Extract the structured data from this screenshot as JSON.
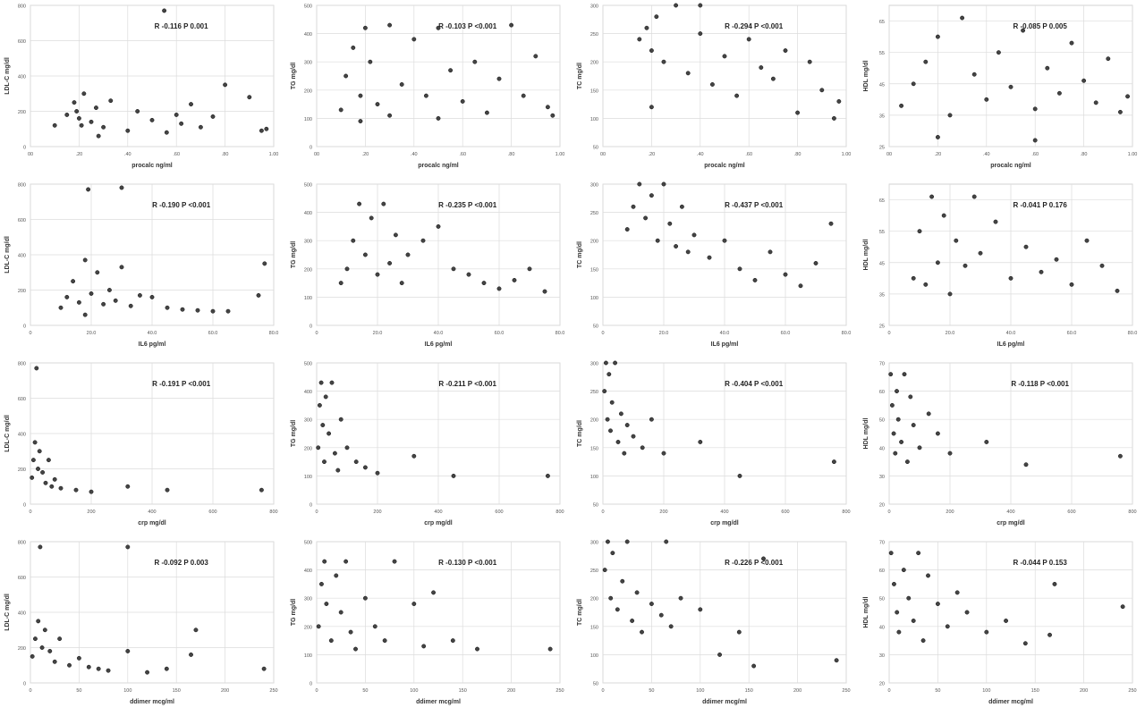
{
  "chart_data": [
    {
      "type": "scatter",
      "xlabel": "procalc ng/ml",
      "ylabel": "LDL-C mg/dl",
      "annotation": "R -0.116 P   0.001",
      "xlim": [
        0,
        1
      ],
      "ylim": [
        0,
        800
      ],
      "xticks": [
        0,
        0.2,
        0.4,
        0.6,
        0.8,
        1
      ],
      "xtick_labels": [
        "00",
        ".20",
        ".40",
        ".60",
        ".80",
        "1.00"
      ],
      "yticks": [
        0,
        200,
        400,
        600,
        800
      ],
      "ytick_labels": [
        "0",
        "200",
        "400",
        "600",
        "800"
      ],
      "x": [
        0.1,
        0.15,
        0.18,
        0.2,
        0.22,
        0.25,
        0.27,
        0.3,
        0.33,
        0.4,
        0.44,
        0.5,
        0.55,
        0.6,
        0.62,
        0.66,
        0.7,
        0.75,
        0.8,
        0.9,
        0.95,
        0.97,
        0.56,
        0.19,
        0.21,
        0.28
      ],
      "y": [
        120,
        180,
        250,
        160,
        300,
        140,
        220,
        110,
        260,
        90,
        200,
        150,
        770,
        180,
        130,
        240,
        110,
        170,
        350,
        280,
        90,
        100,
        80,
        200,
        120,
        60
      ]
    },
    {
      "type": "scatter",
      "xlabel": "procalc ng/ml",
      "ylabel": "TG mg/dl",
      "annotation": "R -0.103 P <0.001",
      "xlim": [
        0,
        1
      ],
      "ylim": [
        0,
        500
      ],
      "xticks": [
        0,
        0.2,
        0.4,
        0.6,
        0.8,
        1
      ],
      "xtick_labels": [
        "00",
        ".20",
        ".40",
        ".60",
        ".80",
        "1.00"
      ],
      "yticks": [
        0,
        100,
        200,
        300,
        400,
        500
      ],
      "ytick_labels": [
        "0",
        "100",
        "200",
        "300",
        "400",
        "500"
      ],
      "x": [
        0.1,
        0.12,
        0.15,
        0.18,
        0.2,
        0.22,
        0.25,
        0.3,
        0.35,
        0.4,
        0.45,
        0.5,
        0.55,
        0.6,
        0.65,
        0.7,
        0.75,
        0.8,
        0.85,
        0.9,
        0.95,
        0.97,
        0.18,
        0.3,
        0.5
      ],
      "y": [
        130,
        250,
        350,
        180,
        420,
        300,
        150,
        430,
        220,
        380,
        180,
        420,
        270,
        160,
        300,
        120,
        240,
        430,
        180,
        320,
        140,
        110,
        90,
        110,
        100
      ]
    },
    {
      "type": "scatter",
      "xlabel": "procalc ng/ml",
      "ylabel": "TC mg/dl",
      "annotation": "R -0.294 P <0.001",
      "xlim": [
        0,
        1
      ],
      "ylim": [
        50,
        300
      ],
      "xticks": [
        0,
        0.2,
        0.4,
        0.6,
        0.8,
        1
      ],
      "xtick_labels": [
        "00",
        ".20",
        ".40",
        ".60",
        ".80",
        "1.00"
      ],
      "yticks": [
        50,
        100,
        150,
        200,
        250,
        300
      ],
      "ytick_labels": [
        "50",
        "100",
        "150",
        "200",
        "250",
        "300"
      ],
      "x": [
        0.15,
        0.18,
        0.2,
        0.22,
        0.25,
        0.3,
        0.35,
        0.4,
        0.45,
        0.5,
        0.55,
        0.6,
        0.65,
        0.7,
        0.75,
        0.8,
        0.85,
        0.9,
        0.95,
        0.97,
        0.2,
        0.4
      ],
      "y": [
        240,
        260,
        220,
        280,
        200,
        300,
        180,
        250,
        160,
        210,
        140,
        240,
        190,
        170,
        220,
        110,
        200,
        150,
        100,
        130,
        120,
        300
      ]
    },
    {
      "type": "scatter",
      "xlabel": "procalc ng/ml",
      "ylabel": "HDL mg/dl",
      "annotation": "R -0.085 P 0.005",
      "xlim": [
        0,
        1
      ],
      "ylim": [
        25,
        70
      ],
      "xticks": [
        0,
        0.2,
        0.4,
        0.6,
        0.8,
        1
      ],
      "xtick_labels": [
        "00",
        ".20",
        ".40",
        ".60",
        ".80",
        "1.00"
      ],
      "yticks": [
        25,
        35,
        45,
        55,
        65
      ],
      "ytick_labels": [
        "25",
        "35",
        "45",
        "55",
        "65"
      ],
      "x": [
        0.05,
        0.1,
        0.15,
        0.2,
        0.25,
        0.3,
        0.35,
        0.4,
        0.45,
        0.5,
        0.55,
        0.6,
        0.65,
        0.7,
        0.75,
        0.8,
        0.85,
        0.9,
        0.95,
        0.98,
        0.2,
        0.6
      ],
      "y": [
        38,
        45,
        52,
        60,
        35,
        66,
        48,
        40,
        55,
        44,
        62,
        37,
        50,
        42,
        58,
        46,
        39,
        53,
        36,
        41,
        28,
        27
      ]
    },
    {
      "type": "scatter",
      "xlabel": "IL6 pg/ml",
      "ylabel": "LDL-C mg/dl",
      "annotation": "R -0.190 P <0.001",
      "xlim": [
        0,
        80
      ],
      "ylim": [
        0,
        800
      ],
      "xticks": [
        0,
        20,
        40,
        60,
        80
      ],
      "xtick_labels": [
        "0",
        "20.0",
        "40.0",
        "60.0",
        "80.0"
      ],
      "yticks": [
        0,
        200,
        400,
        600,
        800
      ],
      "ytick_labels": [
        "0",
        "200",
        "400",
        "600",
        "800"
      ],
      "x": [
        10,
        12,
        14,
        16,
        18,
        19,
        20,
        22,
        24,
        26,
        28,
        30,
        33,
        36,
        40,
        45,
        50,
        55,
        60,
        65,
        75,
        77,
        18,
        30
      ],
      "y": [
        100,
        160,
        250,
        130,
        370,
        770,
        180,
        300,
        120,
        200,
        140,
        330,
        110,
        170,
        160,
        100,
        90,
        85,
        80,
        80,
        170,
        350,
        60,
        780
      ]
    },
    {
      "type": "scatter",
      "xlabel": "IL6 pg/ml",
      "ylabel": "TG mg/dl",
      "annotation": "R -0.235 P <0.001",
      "xlim": [
        0,
        80
      ],
      "ylim": [
        0,
        500
      ],
      "xticks": [
        0,
        20,
        40,
        60,
        80
      ],
      "xtick_labels": [
        "0",
        "20.0",
        "40.0",
        "60.0",
        "80.0"
      ],
      "yticks": [
        0,
        100,
        200,
        300,
        400,
        500
      ],
      "ytick_labels": [
        "0",
        "100",
        "200",
        "300",
        "400",
        "500"
      ],
      "x": [
        8,
        10,
        12,
        14,
        16,
        18,
        20,
        22,
        24,
        26,
        28,
        30,
        35,
        40,
        45,
        50,
        55,
        60,
        65,
        70,
        75
      ],
      "y": [
        150,
        200,
        300,
        430,
        250,
        380,
        180,
        430,
        220,
        320,
        150,
        250,
        300,
        350,
        200,
        180,
        150,
        130,
        160,
        200,
        120
      ]
    },
    {
      "type": "scatter",
      "xlabel": "IL6 pg/ml",
      "ylabel": "TC mg/dl",
      "annotation": "R -0.437 P <0.001",
      "xlim": [
        0,
        80
      ],
      "ylim": [
        50,
        300
      ],
      "xticks": [
        0,
        20,
        40,
        60,
        80
      ],
      "xtick_labels": [
        "0",
        "20.0",
        "40.0",
        "60.0",
        "80.0"
      ],
      "yticks": [
        50,
        100,
        150,
        200,
        250,
        300
      ],
      "ytick_labels": [
        "50",
        "100",
        "150",
        "200",
        "250",
        "300"
      ],
      "x": [
        8,
        10,
        12,
        14,
        16,
        18,
        20,
        22,
        24,
        26,
        28,
        30,
        35,
        40,
        45,
        50,
        55,
        60,
        65,
        70,
        75
      ],
      "y": [
        220,
        260,
        300,
        240,
        280,
        200,
        300,
        230,
        190,
        260,
        180,
        210,
        170,
        200,
        150,
        130,
        180,
        140,
        120,
        160,
        230
      ]
    },
    {
      "type": "scatter",
      "xlabel": "IL6 pg/ml",
      "ylabel": "HDL mg/dl",
      "annotation": "R -0.041 P 0.176",
      "xlim": [
        0,
        80
      ],
      "ylim": [
        25,
        70
      ],
      "xticks": [
        0,
        20,
        40,
        60,
        80
      ],
      "xtick_labels": [
        "0",
        "20.0",
        "40.0",
        "60.0",
        "80.0"
      ],
      "yticks": [
        25,
        35,
        45,
        55,
        65
      ],
      "ytick_labels": [
        "25",
        "35",
        "45",
        "55",
        "65"
      ],
      "x": [
        8,
        10,
        12,
        14,
        16,
        18,
        20,
        22,
        25,
        28,
        30,
        35,
        40,
        45,
        50,
        55,
        60,
        65,
        70,
        75
      ],
      "y": [
        40,
        55,
        38,
        66,
        45,
        60,
        35,
        52,
        44,
        66,
        48,
        58,
        40,
        50,
        42,
        46,
        38,
        52,
        44,
        36
      ]
    },
    {
      "type": "scatter",
      "xlabel": "crp mg/dl",
      "ylabel": "LDL-C mg/dl",
      "annotation": "R -0.191 P <0.001",
      "xlim": [
        0,
        800
      ],
      "ylim": [
        0,
        800
      ],
      "xticks": [
        0,
        200,
        400,
        600,
        800
      ],
      "xtick_labels": [
        "0",
        "200",
        "400",
        "600",
        "800"
      ],
      "yticks": [
        0,
        200,
        400,
        600,
        800
      ],
      "ytick_labels": [
        "0",
        "200",
        "400",
        "600",
        "800"
      ],
      "x": [
        5,
        10,
        15,
        20,
        25,
        30,
        40,
        50,
        60,
        70,
        80,
        100,
        150,
        200,
        320,
        450,
        760
      ],
      "y": [
        150,
        250,
        350,
        770,
        200,
        300,
        180,
        120,
        250,
        100,
        140,
        90,
        80,
        70,
        100,
        80,
        80
      ]
    },
    {
      "type": "scatter",
      "xlabel": "crp mg/dl",
      "ylabel": "TG mg/dl",
      "annotation": "R -0.211 P <0.001",
      "xlim": [
        0,
        800
      ],
      "ylim": [
        0,
        500
      ],
      "xticks": [
        0,
        200,
        400,
        600,
        800
      ],
      "xtick_labels": [
        "0",
        "200",
        "400",
        "600",
        "800"
      ],
      "yticks": [
        0,
        100,
        200,
        300,
        400,
        500
      ],
      "ytick_labels": [
        "0",
        "100",
        "200",
        "300",
        "400",
        "500"
      ],
      "x": [
        5,
        10,
        15,
        20,
        25,
        30,
        40,
        50,
        60,
        70,
        80,
        100,
        130,
        160,
        200,
        320,
        450,
        760
      ],
      "y": [
        200,
        350,
        430,
        280,
        150,
        380,
        250,
        430,
        180,
        120,
        300,
        200,
        150,
        130,
        110,
        170,
        100,
        100
      ]
    },
    {
      "type": "scatter",
      "xlabel": "crp mg/dl",
      "ylabel": "TC mg/dl",
      "annotation": "R -0.404 P <0.001",
      "xlim": [
        0,
        800
      ],
      "ylim": [
        50,
        300
      ],
      "xticks": [
        0,
        200,
        400,
        600,
        800
      ],
      "xtick_labels": [
        "0",
        "200",
        "400",
        "600",
        "800"
      ],
      "yticks": [
        50,
        100,
        150,
        200,
        250,
        300
      ],
      "ytick_labels": [
        "50",
        "100",
        "150",
        "200",
        "250",
        "300"
      ],
      "x": [
        5,
        10,
        15,
        20,
        25,
        30,
        40,
        50,
        60,
        70,
        80,
        100,
        130,
        160,
        200,
        320,
        450,
        760
      ],
      "y": [
        250,
        300,
        200,
        280,
        180,
        230,
        300,
        160,
        210,
        140,
        190,
        170,
        150,
        200,
        140,
        160,
        100,
        125
      ]
    },
    {
      "type": "scatter",
      "xlabel": "crp mg/dl",
      "ylabel": "HDL mg/dl",
      "annotation": "R -0.118 P <0.001",
      "xlim": [
        0,
        800
      ],
      "ylim": [
        20,
        70
      ],
      "xticks": [
        0,
        200,
        400,
        600,
        800
      ],
      "xtick_labels": [
        "0",
        "200",
        "400",
        "600",
        "800"
      ],
      "yticks": [
        20,
        30,
        40,
        50,
        60,
        70
      ],
      "ytick_labels": [
        "20",
        "30",
        "40",
        "50",
        "60",
        "70"
      ],
      "x": [
        5,
        10,
        15,
        20,
        25,
        30,
        40,
        50,
        60,
        70,
        80,
        100,
        130,
        160,
        200,
        320,
        450,
        760
      ],
      "y": [
        66,
        55,
        45,
        38,
        60,
        50,
        42,
        66,
        35,
        58,
        48,
        40,
        52,
        45,
        38,
        42,
        34,
        37
      ]
    },
    {
      "type": "scatter",
      "xlabel": "ddimer mcg/ml",
      "ylabel": "LDL-C mg/dl",
      "annotation": "R -0.092 P 0.003",
      "xlim": [
        0,
        250
      ],
      "ylim": [
        0,
        800
      ],
      "xticks": [
        0,
        50,
        100,
        150,
        200,
        250
      ],
      "xtick_labels": [
        "0",
        "50",
        "100",
        "150",
        "200",
        "250"
      ],
      "yticks": [
        0,
        200,
        400,
        600,
        800
      ],
      "ytick_labels": [
        "0",
        "200",
        "400",
        "600",
        "800"
      ],
      "x": [
        2,
        5,
        8,
        10,
        12,
        15,
        20,
        25,
        30,
        40,
        50,
        60,
        70,
        80,
        100,
        100,
        120,
        140,
        165,
        170,
        240
      ],
      "y": [
        150,
        250,
        350,
        770,
        200,
        300,
        180,
        120,
        250,
        100,
        140,
        90,
        80,
        70,
        770,
        180,
        60,
        80,
        160,
        300,
        80
      ]
    },
    {
      "type": "scatter",
      "xlabel": "ddimer mcg/ml",
      "ylabel": "TG mg/dl",
      "annotation": "R -0.130 P <0.001",
      "xlim": [
        0,
        250
      ],
      "ylim": [
        0,
        500
      ],
      "xticks": [
        0,
        50,
        100,
        150,
        200,
        250
      ],
      "xtick_labels": [
        "0",
        "50",
        "100",
        "150",
        "200",
        "250"
      ],
      "yticks": [
        0,
        100,
        200,
        300,
        400,
        500
      ],
      "ytick_labels": [
        "0",
        "100",
        "200",
        "300",
        "400",
        "500"
      ],
      "x": [
        2,
        5,
        8,
        10,
        15,
        20,
        25,
        30,
        35,
        40,
        50,
        60,
        70,
        80,
        100,
        110,
        120,
        140,
        165,
        240
      ],
      "y": [
        200,
        350,
        430,
        280,
        150,
        380,
        250,
        430,
        180,
        120,
        300,
        200,
        150,
        430,
        280,
        130,
        320,
        150,
        120,
        120
      ]
    },
    {
      "type": "scatter",
      "xlabel": "ddimer mcg/ml",
      "ylabel": "TC mg/dl",
      "annotation": "R -0.226 P <0.001",
      "xlim": [
        0,
        250
      ],
      "ylim": [
        50,
        300
      ],
      "xticks": [
        0,
        50,
        100,
        150,
        200,
        250
      ],
      "xtick_labels": [
        "0",
        "50",
        "100",
        "150",
        "200",
        "250"
      ],
      "yticks": [
        50,
        100,
        150,
        200,
        250,
        300
      ],
      "ytick_labels": [
        "50",
        "100",
        "150",
        "200",
        "250",
        "300"
      ],
      "x": [
        2,
        5,
        8,
        10,
        15,
        20,
        25,
        30,
        35,
        40,
        50,
        60,
        65,
        70,
        80,
        100,
        120,
        140,
        155,
        165,
        240
      ],
      "y": [
        250,
        300,
        200,
        280,
        180,
        230,
        300,
        160,
        210,
        140,
        190,
        170,
        300,
        150,
        200,
        180,
        100,
        140,
        80,
        270,
        90
      ]
    },
    {
      "type": "scatter",
      "xlabel": "ddimer mcg/ml",
      "ylabel": "HDL mg/dl",
      "annotation": "R -0.044 P 0.153",
      "xlim": [
        0,
        250
      ],
      "ylim": [
        20,
        70
      ],
      "xticks": [
        0,
        50,
        100,
        150,
        200,
        250
      ],
      "xtick_labels": [
        "0",
        "50",
        "100",
        "150",
        "200",
        "250"
      ],
      "yticks": [
        20,
        30,
        40,
        50,
        60,
        70
      ],
      "ytick_labels": [
        "20",
        "30",
        "40",
        "50",
        "60",
        "70"
      ],
      "x": [
        2,
        5,
        8,
        10,
        15,
        20,
        25,
        30,
        35,
        40,
        50,
        60,
        70,
        80,
        100,
        120,
        140,
        165,
        170,
        240
      ],
      "y": [
        66,
        55,
        45,
        38,
        60,
        50,
        42,
        66,
        35,
        58,
        48,
        40,
        52,
        45,
        38,
        42,
        34,
        37,
        55,
        47
      ]
    }
  ]
}
